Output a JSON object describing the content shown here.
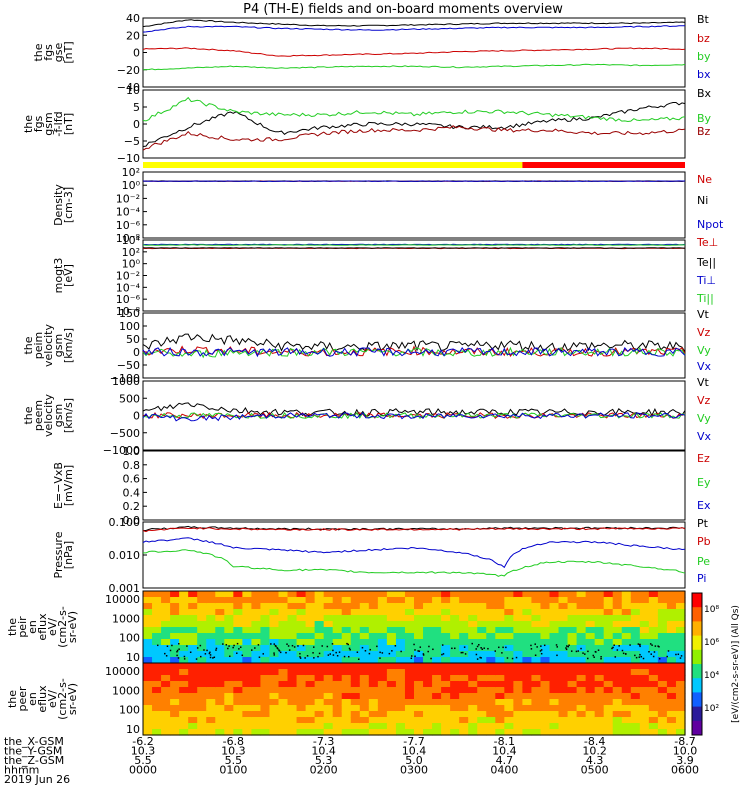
{
  "title": "P4 (TH-E) fields and on-board moments overview",
  "chart_data": [
    {
      "type": "line",
      "ylabel": [
        "the",
        "fgs",
        "gse",
        "[nT]"
      ],
      "yticks": [
        "40",
        "20",
        "0",
        "−20",
        "−40"
      ],
      "ylim": [
        -40,
        40
      ],
      "legend": [
        "Bt",
        "bz",
        "by",
        "bx"
      ],
      "series": [
        {
          "name": "Bt",
          "color": "#000000",
          "values": [
            30,
            38,
            35,
            33,
            31,
            31,
            32,
            33,
            34,
            34,
            34,
            34,
            35
          ]
        },
        {
          "name": "bz",
          "color": "#cc0000",
          "values": [
            4,
            5,
            2,
            -4,
            -3,
            -2,
            -1,
            1,
            2,
            3,
            4,
            5,
            4
          ]
        },
        {
          "name": "by",
          "color": "#22cc22",
          "values": [
            -20,
            -18,
            -16,
            -18,
            -17,
            -16,
            -16,
            -17,
            -16,
            -15,
            -14,
            -15,
            -14
          ]
        },
        {
          "name": "bx",
          "color": "#0000cc",
          "values": [
            24,
            30,
            30,
            28,
            27,
            26,
            27,
            28,
            29,
            29,
            29,
            30,
            31
          ]
        }
      ]
    },
    {
      "type": "line",
      "ylabel": [
        "the",
        "fgs",
        "gsm",
        "-f-lfd",
        "[nT]"
      ],
      "yticks": [
        "10",
        "5",
        "0",
        "−5",
        "−10"
      ],
      "ylim": [
        -12,
        10
      ],
      "legend": [
        "Bx",
        "By",
        "Bz"
      ],
      "series": [
        {
          "name": "Bx",
          "color": "#000000",
          "values": [
            -8,
            -2,
            3,
            -4,
            -2,
            -1,
            -1,
            -2,
            -2,
            0,
            1,
            4,
            6
          ]
        },
        {
          "name": "By",
          "color": "#22cc22",
          "values": [
            0,
            7,
            3,
            2,
            2,
            3,
            2,
            3,
            3,
            2,
            1,
            0,
            1
          ]
        },
        {
          "name": "Bz",
          "color": "#990000",
          "values": [
            -9,
            -4,
            -6,
            -6,
            -4,
            -3,
            -3,
            -2,
            -3,
            -3,
            -4,
            -4,
            -3
          ]
        }
      ]
    },
    {
      "type": "bar",
      "note": "mode bar",
      "segments": [
        {
          "color": "#ffff00",
          "from": 0.0,
          "to": 0.7
        },
        {
          "color": "#ff0000",
          "from": 0.7,
          "to": 1.0
        }
      ]
    },
    {
      "type": "line",
      "ylabel": [
        "Density",
        "[cm-3]"
      ],
      "yticks": [
        "10²",
        "10⁰",
        "10⁻²",
        "10⁻⁴",
        "10⁻⁶",
        "10⁻⁸"
      ],
      "legend": [
        "Ne",
        "Ni",
        "Npot"
      ],
      "series": [
        {
          "name": "Ne",
          "color": "#cc0000",
          "values": [
            3,
            3,
            3,
            3,
            3,
            3,
            3,
            3,
            3,
            3,
            3,
            3,
            3
          ]
        },
        {
          "name": "Ni",
          "color": "#000000",
          "values": [
            3,
            3,
            3,
            3,
            3,
            3,
            3,
            3,
            3,
            3,
            3,
            3,
            3
          ]
        },
        {
          "name": "Npot",
          "color": "#0000cc",
          "values": [
            3,
            3,
            3,
            3,
            3,
            3,
            3,
            3,
            3,
            3,
            3,
            3,
            3
          ]
        }
      ]
    },
    {
      "type": "line",
      "ylabel": [
        "mogt3",
        "[eV]"
      ],
      "yticks": [
        "10⁴",
        "10²",
        "10⁰",
        "10⁻²",
        "10⁻⁴",
        "10⁻⁶",
        "10⁻⁸"
      ],
      "legend": [
        "Te⊥",
        "Te||",
        "Ti⊥",
        "Ti||"
      ],
      "series": [
        {
          "name": "Te⊥",
          "color": "#cc0000",
          "values": [
            300,
            300,
            300,
            300,
            300,
            300,
            300,
            300,
            300,
            300,
            300,
            300,
            300
          ]
        },
        {
          "name": "Te||",
          "color": "#000000",
          "values": [
            350,
            350,
            350,
            350,
            350,
            350,
            350,
            350,
            350,
            350,
            350,
            350,
            350
          ]
        },
        {
          "name": "Ti⊥",
          "color": "#0000cc",
          "values": [
            1500,
            1500,
            1500,
            1500,
            1500,
            1500,
            1500,
            1500,
            1500,
            1500,
            1500,
            1500,
            1500
          ]
        },
        {
          "name": "Ti||",
          "color": "#22cc22",
          "values": [
            1200,
            1200,
            1200,
            1200,
            1200,
            1200,
            1200,
            1200,
            1200,
            1200,
            1200,
            1200,
            1200
          ]
        }
      ]
    },
    {
      "type": "line",
      "ylabel": [
        "the",
        "peim",
        "velocity",
        "gsm",
        "[km/s]"
      ],
      "yticks": [
        "150",
        "100",
        "50",
        "0",
        "−50",
        "−100"
      ],
      "ylim": [
        -100,
        150
      ],
      "legend": [
        "Vt",
        "Vz",
        "Vy",
        "Vx"
      ],
      "series": [
        {
          "name": "Vt",
          "color": "#000000",
          "values": [
            20,
            60,
            45,
            25,
            20,
            20,
            25,
            20,
            30,
            20,
            25,
            25,
            20
          ]
        },
        {
          "name": "Vz",
          "color": "#cc0000",
          "values": [
            0,
            10,
            5,
            0,
            0,
            0,
            5,
            0,
            0,
            0,
            0,
            0,
            0
          ]
        },
        {
          "name": "Vy",
          "color": "#22cc22",
          "values": [
            0,
            -10,
            0,
            0,
            0,
            0,
            0,
            -5,
            0,
            0,
            0,
            0,
            0
          ]
        },
        {
          "name": "Vx",
          "color": "#0000cc",
          "values": [
            0,
            0,
            0,
            0,
            0,
            0,
            0,
            0,
            0,
            0,
            0,
            0,
            0
          ]
        }
      ]
    },
    {
      "type": "line",
      "ylabel": [
        "the",
        "peem",
        "velocity",
        "gsm",
        "[km/s]"
      ],
      "yticks": [
        "1000",
        "500",
        "0",
        "−500",
        "−1000"
      ],
      "ylim": [
        -1000,
        1000
      ],
      "legend": [
        "Vt",
        "Vz",
        "Vy",
        "Vx"
      ],
      "series": [
        {
          "name": "Vt",
          "color": "#000000",
          "values": [
            100,
            350,
            150,
            100,
            80,
            90,
            100,
            90,
            100,
            90,
            100,
            100,
            90
          ]
        },
        {
          "name": "Vz",
          "color": "#cc0000",
          "values": [
            0,
            0,
            0,
            0,
            0,
            0,
            0,
            0,
            0,
            0,
            0,
            0,
            0
          ]
        },
        {
          "name": "Vy",
          "color": "#22cc22",
          "values": [
            0,
            0,
            0,
            0,
            0,
            0,
            0,
            0,
            0,
            0,
            0,
            0,
            0
          ]
        },
        {
          "name": "Vx",
          "color": "#0000cc",
          "values": [
            0,
            -100,
            -50,
            0,
            0,
            0,
            -40,
            0,
            0,
            0,
            0,
            0,
            0
          ]
        }
      ]
    },
    {
      "type": "line",
      "ylabel": [
        "E=−VxB",
        "[mV/m]"
      ],
      "yticks": [
        "1.0",
        "0.8",
        "0.6",
        "0.4",
        "0.2",
        "0.0"
      ],
      "ylim": [
        0,
        1
      ],
      "legend": [
        "Ez",
        "Ey",
        "Ex"
      ],
      "series": []
    },
    {
      "type": "line",
      "ylabel": [
        "Pressure",
        "[nPa]"
      ],
      "yticks": [
        "0.100",
        "0.010",
        "0.001"
      ],
      "legend": [
        "Pt",
        "Pb",
        "Pe",
        "Pi"
      ],
      "series": [
        {
          "name": "Pt",
          "color": "#000000",
          "values": [
            0.4,
            0.55,
            0.5,
            0.45,
            0.45,
            0.45,
            0.45,
            0.45,
            0.5,
            0.5,
            0.5,
            0.5,
            0.5
          ]
        },
        {
          "name": "Pb",
          "color": "#cc0000",
          "values": [
            0.35,
            0.5,
            0.45,
            0.42,
            0.42,
            0.42,
            0.43,
            0.43,
            0.45,
            0.45,
            0.46,
            0.47,
            0.48
          ]
        },
        {
          "name": "Pe",
          "color": "#22cc22",
          "values": [
            0.03,
            0.04,
            0.006,
            0.004,
            0.004,
            0.003,
            0.003,
            0.003,
            0.002,
            0.01,
            0.01,
            0.006,
            0.003
          ]
        },
        {
          "name": "Pi",
          "color": "#0000cc",
          "values": [
            0.1,
            0.15,
            0.05,
            0.04,
            0.03,
            0.04,
            0.05,
            0.03,
            0.005,
            0.1,
            0.1,
            0.06,
            0.04
          ]
        }
      ]
    },
    {
      "type": "heatmap",
      "ylabel": [
        "the",
        "peir",
        "en",
        "eflux",
        "eV/",
        "(cm2-s-",
        "sr-eV)"
      ],
      "yticks": [
        "10000",
        "1000",
        "100",
        "10"
      ]
    },
    {
      "type": "heatmap",
      "ylabel": [
        "the",
        "peer",
        "en",
        "eflux",
        "eV/",
        "(cm2-s-",
        "sr-eV)"
      ],
      "yticks": [
        "10000",
        "1000",
        "100",
        "10"
      ]
    }
  ],
  "colorbar": {
    "label": "[eV/(cm2-s-sr-eV)] (All Qs)",
    "ticks": [
      "10⁸",
      "10⁶",
      "10⁴",
      "10²"
    ]
  },
  "xaxis": {
    "rows": [
      {
        "label": "the_X-GSM",
        "values": [
          "-6.2",
          "-6.8",
          "-7.3",
          "-7.7",
          "-8.1",
          "-8.4",
          "-8.7"
        ]
      },
      {
        "label": "the_Y-GSM",
        "values": [
          "10.3",
          "10.3",
          "10.4",
          "10.4",
          "10.4",
          "10.2",
          "10.0"
        ]
      },
      {
        "label": "the_Z-GSM",
        "values": [
          "5.5",
          "5.5",
          "5.3",
          "5.0",
          "4.7",
          "4.3",
          "3.9"
        ]
      },
      {
        "label": "hhmm",
        "values": [
          "0000",
          "0100",
          "0200",
          "0300",
          "0400",
          "0500",
          "0600"
        ]
      }
    ],
    "date": "2019 Jun 26"
  }
}
